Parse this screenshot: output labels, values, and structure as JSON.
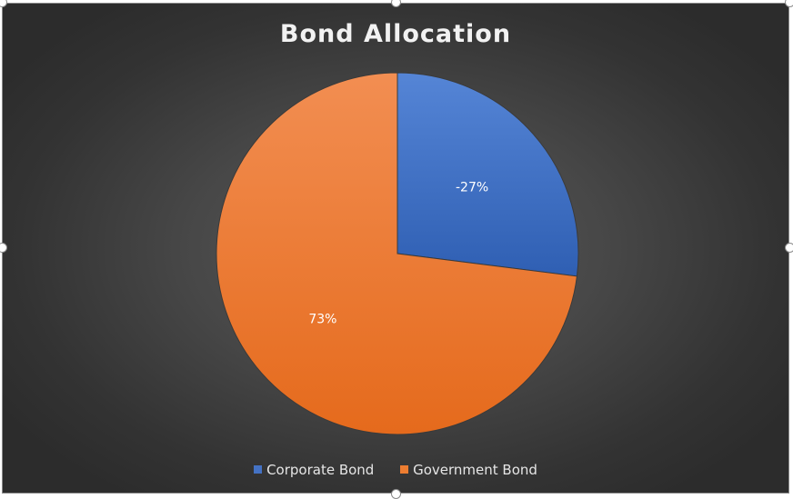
{
  "chart_data": {
    "type": "pie",
    "title": "Bond Allocation",
    "categories": [
      "Corporate Bond",
      "Government Bond"
    ],
    "values": [
      -27,
      73
    ],
    "data_labels": [
      "-27%",
      "73%"
    ],
    "colors": [
      "#4472c4",
      "#ed7d31"
    ],
    "legend_position": "bottom"
  }
}
